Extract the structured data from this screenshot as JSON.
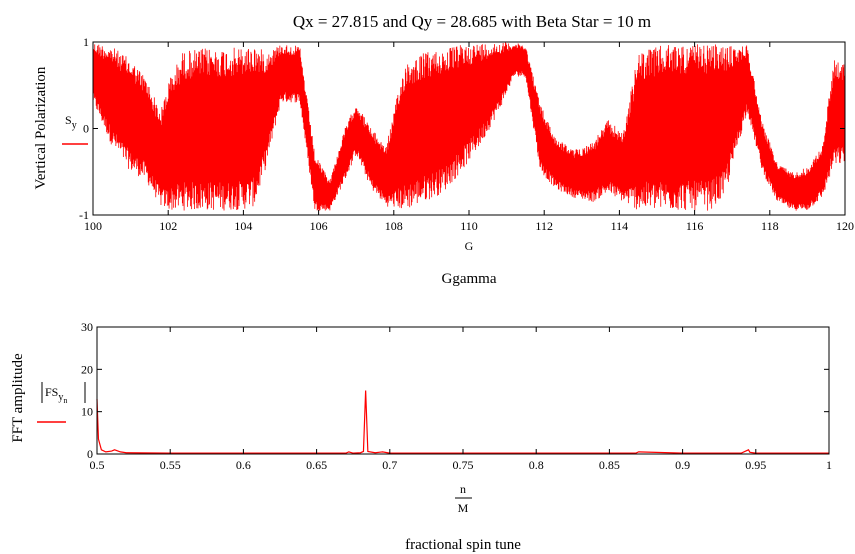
{
  "chart_data": [
    {
      "type": "line",
      "title": "Qx = 27.815 and Qy = 28.685 with Beta Star = 10 m",
      "ylabel": "Vertical Polarization",
      "legend_symbol": "S",
      "legend_subscript": "y",
      "xvar": "G",
      "xlabel": "Ggamma",
      "xlim": [
        100,
        120
      ],
      "ylim": [
        -1,
        1
      ],
      "xticks": [
        "100",
        "102",
        "104",
        "106",
        "108",
        "110",
        "112",
        "114",
        "116",
        "118",
        "120"
      ],
      "yticks": [
        "1",
        "0",
        "-1"
      ],
      "color": "#ff0000",
      "grid": false,
      "series": [
        {
          "name": "S_y",
          "x": [
            100,
            100.5,
            101,
            101.4,
            101.8,
            102,
            102.4,
            103,
            103.5,
            104,
            104.3,
            104.6,
            105,
            105.5,
            105.9,
            106.3,
            106.7,
            107,
            107.4,
            107.8,
            108.3,
            108.8,
            109.3,
            109.8,
            110.3,
            110.8,
            111.2,
            111.5,
            111.9,
            112.3,
            112.8,
            113.3,
            113.7,
            114.1,
            114.5,
            115,
            115.5,
            116,
            116.4,
            116.8,
            117.1,
            117.4,
            117.8,
            118.2,
            118.6,
            119,
            119.4,
            119.7,
            120
          ],
          "upper": [
            1.0,
            0.95,
            0.8,
            0.6,
            0.2,
            0.55,
            0.9,
            0.93,
            0.93,
            0.94,
            0.97,
            0.88,
            0.98,
            0.95,
            -0.3,
            -0.6,
            0.0,
            0.3,
            0.0,
            -0.2,
            0.78,
            0.88,
            0.92,
            0.97,
            0.99,
            1.0,
            0.99,
            0.97,
            0.28,
            -0.1,
            -0.25,
            -0.15,
            0.1,
            -0.05,
            0.88,
            0.95,
            0.98,
            0.97,
            0.98,
            0.96,
            0.95,
            0.97,
            0.08,
            -0.4,
            -0.5,
            -0.45,
            -0.2,
            0.8,
            0.75
          ],
          "lower": [
            0.3,
            -0.2,
            -0.5,
            -0.6,
            -0.9,
            -0.95,
            -0.95,
            -0.95,
            -0.95,
            -0.94,
            -0.9,
            -0.45,
            0.3,
            0.3,
            -0.95,
            -0.95,
            -0.6,
            -0.3,
            -0.7,
            -0.9,
            -0.95,
            -0.85,
            -0.75,
            -0.5,
            -0.2,
            0.2,
            0.6,
            0.6,
            -0.5,
            -0.7,
            -0.8,
            -0.85,
            -0.75,
            -0.85,
            -0.95,
            -0.95,
            -0.95,
            -0.95,
            -0.95,
            -0.8,
            -0.3,
            0.2,
            -0.5,
            -0.85,
            -0.95,
            -0.95,
            -0.8,
            -0.45,
            -0.4
          ]
        }
      ]
    },
    {
      "type": "line",
      "ylabel": "FFT amplitude",
      "legend_symbol": "FS",
      "legend_subscript": "y",
      "legend_subsubscript": "n",
      "xvar_num": "n",
      "xvar_den": "M",
      "xlabel": "fractional spin tune",
      "xlim": [
        0.5,
        1
      ],
      "ylim": [
        0,
        30
      ],
      "xticks": [
        "0.5",
        "0.55",
        "0.6",
        "0.65",
        "0.7",
        "0.75",
        "0.8",
        "0.85",
        "0.9",
        "0.95",
        "1"
      ],
      "yticks": [
        "30",
        "20",
        "10",
        "0"
      ],
      "color": "#ff0000",
      "grid": false,
      "series": [
        {
          "name": "|FS_y_n|",
          "x": [
            0.5,
            0.501,
            0.503,
            0.506,
            0.51,
            0.512,
            0.516,
            0.52,
            0.55,
            0.6,
            0.65,
            0.67,
            0.672,
            0.675,
            0.68,
            0.682,
            0.6835,
            0.685,
            0.69,
            0.695,
            0.7,
            0.75,
            0.8,
            0.85,
            0.868,
            0.87,
            0.9,
            0.94,
            0.945,
            0.946,
            0.95,
            1.0
          ],
          "values": [
            13,
            3.5,
            1.0,
            0.5,
            0.7,
            1.0,
            0.5,
            0.3,
            0.2,
            0.2,
            0.2,
            0.2,
            0.5,
            0.2,
            0.3,
            0.6,
            15,
            0.6,
            0.3,
            0.5,
            0.2,
            0.2,
            0.2,
            0.2,
            0.2,
            0.5,
            0.2,
            0.2,
            1.0,
            0.4,
            0.2,
            0.2
          ]
        }
      ]
    }
  ]
}
